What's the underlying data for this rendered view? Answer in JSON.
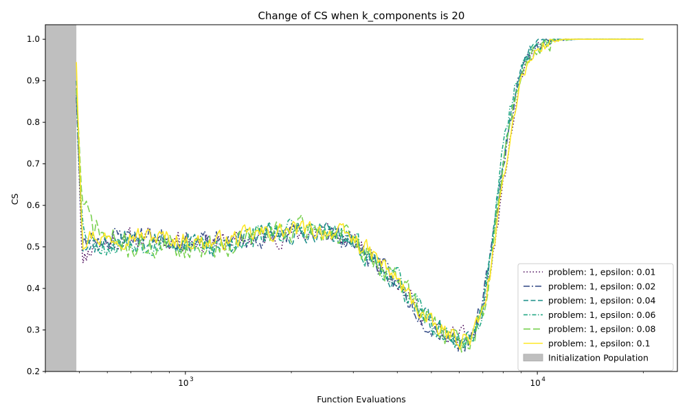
{
  "chart_data": {
    "type": "line",
    "title": "Change of CS when k_components is 20",
    "xlabel": "Function Evaluations",
    "ylabel": "CS",
    "x_scale": "log",
    "xlim": [
      400,
      25000
    ],
    "ylim": [
      0.2,
      1.035
    ],
    "x_ticks_major": [
      {
        "value": 1000,
        "base": "10",
        "exp": "3"
      },
      {
        "value": 10000,
        "base": "10",
        "exp": "4"
      }
    ],
    "y_ticks": [
      "0.2",
      "0.3",
      "0.4",
      "0.5",
      "0.6",
      "0.7",
      "0.8",
      "0.9",
      "1.0"
    ],
    "grid": false,
    "legend_position": "lower-right",
    "init_region": {
      "label": "Initialization Population",
      "x_start": 400,
      "x_end": 490,
      "color": "#bfbfbf"
    },
    "series": [
      {
        "name": "problem: 1, epsilon: 0.01",
        "color": "#440154",
        "dash": "dotted",
        "seed": 11,
        "noise": 0.038,
        "x": [
          490,
          510,
          540,
          600,
          700,
          900,
          1200,
          1600,
          2000,
          2500,
          3000,
          3500,
          4000,
          4500,
          5000,
          5500,
          6000,
          6500,
          7000,
          7500,
          8000,
          8500,
          9000,
          10000,
          11000,
          12000,
          15000,
          20000
        ],
        "y": [
          0.88,
          0.46,
          0.5,
          0.51,
          0.52,
          0.52,
          0.51,
          0.52,
          0.53,
          0.54,
          0.51,
          0.47,
          0.42,
          0.36,
          0.31,
          0.29,
          0.28,
          0.28,
          0.34,
          0.48,
          0.65,
          0.79,
          0.91,
          0.98,
          0.997,
          1.0,
          1.0,
          1.0
        ]
      },
      {
        "name": "problem: 1, epsilon: 0.02",
        "color": "#3b528b",
        "dash": "dashdot",
        "seed": 23,
        "noise": 0.038,
        "x": [
          490,
          510,
          540,
          600,
          700,
          900,
          1200,
          1600,
          2000,
          2500,
          3000,
          3500,
          4000,
          4500,
          5000,
          5500,
          6000,
          6500,
          7000,
          7500,
          8000,
          8500,
          9000,
          10000,
          11000,
          12000,
          15000,
          20000
        ],
        "y": [
          0.86,
          0.5,
          0.52,
          0.52,
          0.53,
          0.52,
          0.51,
          0.52,
          0.53,
          0.54,
          0.51,
          0.46,
          0.41,
          0.35,
          0.31,
          0.29,
          0.27,
          0.28,
          0.36,
          0.52,
          0.7,
          0.83,
          0.93,
          0.985,
          0.998,
          1.0,
          1.0,
          1.0
        ]
      },
      {
        "name": "problem: 1, epsilon: 0.04",
        "color": "#21918c",
        "dash": "dashed",
        "seed": 37,
        "noise": 0.036,
        "x": [
          490,
          510,
          540,
          600,
          700,
          900,
          1200,
          1600,
          2000,
          2500,
          3000,
          3500,
          4000,
          4500,
          5000,
          5500,
          6000,
          6500,
          7000,
          7500,
          8000,
          8500,
          9000,
          10000,
          11000,
          12000,
          15000,
          20000
        ],
        "y": [
          0.9,
          0.52,
          0.5,
          0.51,
          0.52,
          0.51,
          0.5,
          0.53,
          0.53,
          0.54,
          0.51,
          0.46,
          0.41,
          0.36,
          0.31,
          0.29,
          0.28,
          0.28,
          0.36,
          0.53,
          0.72,
          0.84,
          0.94,
          0.99,
          0.999,
          1.0,
          1.0,
          1.0
        ]
      },
      {
        "name": "problem: 1, epsilon: 0.06",
        "color": "#22a884",
        "dash": "dashdot2",
        "seed": 53,
        "noise": 0.042,
        "x": [
          490,
          510,
          540,
          600,
          700,
          900,
          1200,
          1600,
          2000,
          2500,
          3000,
          3500,
          4000,
          4500,
          5000,
          5500,
          6000,
          6500,
          7000,
          7500,
          8000,
          8500,
          9000,
          10000,
          11000,
          12000,
          15000,
          20000
        ],
        "y": [
          0.88,
          0.55,
          0.52,
          0.5,
          0.51,
          0.51,
          0.5,
          0.53,
          0.54,
          0.54,
          0.51,
          0.46,
          0.42,
          0.36,
          0.31,
          0.29,
          0.27,
          0.27,
          0.35,
          0.54,
          0.74,
          0.86,
          0.94,
          0.99,
          0.999,
          1.0,
          1.0,
          1.0
        ]
      },
      {
        "name": "problem: 1, epsilon: 0.08",
        "color": "#7ad151",
        "dash": "longdash",
        "seed": 71,
        "noise": 0.045,
        "x": [
          490,
          510,
          540,
          600,
          700,
          900,
          1200,
          1600,
          2000,
          2500,
          3000,
          3500,
          4000,
          4500,
          5000,
          5500,
          6000,
          6500,
          7000,
          7500,
          8000,
          8500,
          9000,
          10000,
          11000,
          12000,
          15000,
          20000
        ],
        "y": [
          0.88,
          0.6,
          0.56,
          0.52,
          0.5,
          0.5,
          0.5,
          0.53,
          0.54,
          0.54,
          0.51,
          0.46,
          0.42,
          0.37,
          0.32,
          0.29,
          0.27,
          0.27,
          0.34,
          0.5,
          0.7,
          0.83,
          0.93,
          0.985,
          0.998,
          1.0,
          1.0,
          1.0
        ]
      },
      {
        "name": "problem: 1, epsilon: 0.1",
        "color": "#fde725",
        "dash": "solid",
        "seed": 97,
        "noise": 0.035,
        "x": [
          490,
          510,
          540,
          600,
          700,
          900,
          1200,
          1600,
          2000,
          2500,
          3000,
          3500,
          4000,
          4500,
          5000,
          5500,
          6000,
          6500,
          7000,
          7500,
          8000,
          8500,
          9000,
          10000,
          11000,
          12000,
          15000,
          20000
        ],
        "y": [
          0.945,
          0.52,
          0.53,
          0.52,
          0.53,
          0.52,
          0.51,
          0.53,
          0.54,
          0.54,
          0.52,
          0.47,
          0.42,
          0.36,
          0.31,
          0.29,
          0.28,
          0.28,
          0.34,
          0.48,
          0.66,
          0.8,
          0.91,
          0.975,
          0.995,
          1.0,
          1.0,
          1.0
        ]
      }
    ]
  }
}
